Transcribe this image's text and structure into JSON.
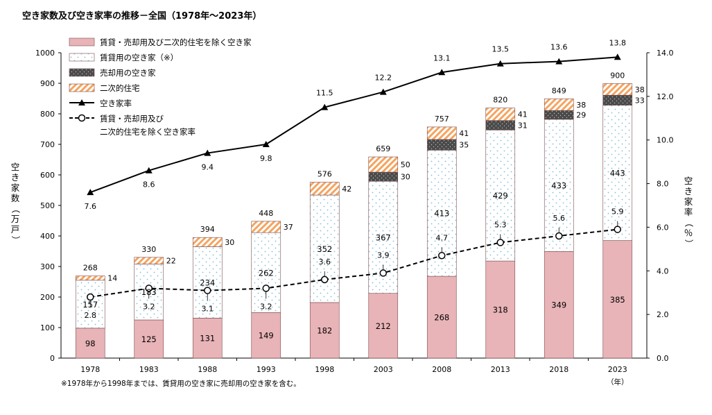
{
  "chart_data": {
    "type": "bar",
    "title": "空き家数及び空き家率の推移－全国（1978年～2023年）",
    "categories": [
      "1978",
      "1983",
      "1988",
      "1993",
      "1998",
      "2003",
      "2008",
      "2013",
      "2018",
      "2023"
    ],
    "xunit": "（年）",
    "ylabel_left": "空き家数（万戸）",
    "ylabel_right": "空き家率（％）",
    "ylim_left": [
      0,
      1000
    ],
    "ylim_right": [
      0,
      14
    ],
    "yticks_left": [
      "0",
      "100",
      "200",
      "300",
      "400",
      "500",
      "600",
      "700",
      "800",
      "900",
      "1000"
    ],
    "yticks_right": [
      "0.0",
      "2.0",
      "4.0",
      "6.0",
      "8.0",
      "10.0",
      "12.0",
      "14.0"
    ],
    "bar_series": [
      {
        "name": "賃貸・売却用及び二次的住宅を除く空き家",
        "color": "#e8b4b8",
        "values": [
          98,
          125,
          131,
          149,
          182,
          212,
          268,
          318,
          349,
          385
        ],
        "labels": [
          "98",
          "125",
          "131",
          "149",
          "182",
          "212",
          "268",
          "318",
          "349",
          "385"
        ]
      },
      {
        "name": "賃貸用の空き家（※）",
        "color": "#ffffff",
        "values": [
          157,
          183,
          234,
          262,
          352,
          367,
          413,
          429,
          433,
          443
        ],
        "labels": [
          "157",
          "183",
          "234",
          "262",
          "352",
          "367",
          "413",
          "429",
          "433",
          "443"
        ]
      },
      {
        "name": "売却用の空き家",
        "color": "#555555",
        "values": [
          0,
          0,
          0,
          0,
          0,
          30,
          35,
          31,
          29,
          33
        ],
        "labels": [
          "",
          "",
          "",
          "",
          "",
          "30",
          "35",
          "31",
          "29",
          "33"
        ]
      },
      {
        "name": "二次的住宅",
        "color": "#f4a460",
        "values": [
          14,
          22,
          30,
          37,
          42,
          50,
          41,
          41,
          38,
          38
        ],
        "labels": [
          "14",
          "22",
          "30",
          "37",
          "42",
          "50",
          "41",
          "41",
          "38",
          "38"
        ]
      }
    ],
    "totals": [
      "268",
      "330",
      "394",
      "448",
      "576",
      "659",
      "757",
      "820",
      "849",
      "900"
    ],
    "line_series": [
      {
        "name": "空き家率",
        "marker": "triangle",
        "values": [
          7.6,
          8.6,
          9.4,
          9.8,
          11.5,
          12.2,
          13.1,
          13.5,
          13.6,
          13.8
        ],
        "labels": [
          "7.6",
          "8.6",
          "9.4",
          "9.8",
          "11.5",
          "12.2",
          "13.1",
          "13.5",
          "13.6",
          "13.8"
        ]
      },
      {
        "name": "賃貸・売却用及び二次的住宅を除く空き家率",
        "marker": "circle",
        "values": [
          2.8,
          3.2,
          3.1,
          3.2,
          3.6,
          3.9,
          4.7,
          5.3,
          5.6,
          5.9
        ],
        "labels": [
          "2.8",
          "3.2",
          "3.1",
          "3.2",
          "3.6",
          "3.9",
          "4.7",
          "5.3",
          "5.6",
          "5.9"
        ]
      }
    ],
    "legend": {
      "placement": "top-left",
      "items": [
        "賃貸・売却用及び二次的住宅を除く空き家",
        "賃貸用の空き家（※）",
        "売却用の空き家",
        "二次的住宅",
        "空き家率",
        "賃貸・売却用及び",
        "二次的住宅を除く空き家率"
      ]
    },
    "footnote": "※1978年から1998年までは、賃貸用の空き家に売却用の空き家を含む。",
    "grid": false
  }
}
